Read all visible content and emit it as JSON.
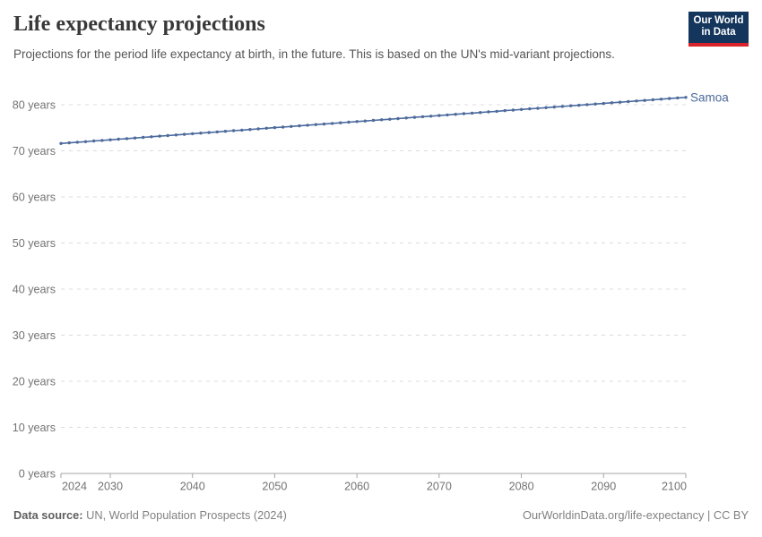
{
  "header": {
    "title": "Life expectancy projections",
    "subtitle": "Projections for the period life expectancy at birth, in the future. This is based on the UN's mid-variant projections."
  },
  "logo": {
    "line1": "Our World",
    "line2": "in Data",
    "bg_color": "#14355c",
    "accent_color": "#d8232a"
  },
  "chart_data": {
    "type": "line",
    "title": "Life expectancy projections",
    "xlabel": "",
    "ylabel": "",
    "xlim": [
      2024,
      2100
    ],
    "ylim": [
      0,
      85
    ],
    "grid": "horizontal-dashed",
    "legend_position": "end-of-line-label",
    "x_ticks": [
      2024,
      2030,
      2040,
      2050,
      2060,
      2070,
      2080,
      2090,
      2100
    ],
    "x_tick_labels": [
      "2024",
      "2030",
      "2040",
      "2050",
      "2060",
      "2070",
      "2080",
      "2090",
      "2100"
    ],
    "y_ticks": [
      0,
      10,
      20,
      30,
      40,
      50,
      60,
      70,
      80
    ],
    "y_tick_labels": [
      "0 years",
      "10 years",
      "20 years",
      "30 years",
      "40 years",
      "50 years",
      "60 years",
      "70 years",
      "80 years"
    ],
    "series": [
      {
        "name": "Samoa",
        "color": "#4c6a9c",
        "x": [
          2024,
          2025,
          2026,
          2027,
          2028,
          2029,
          2030,
          2031,
          2032,
          2033,
          2034,
          2035,
          2036,
          2037,
          2038,
          2039,
          2040,
          2041,
          2042,
          2043,
          2044,
          2045,
          2046,
          2047,
          2048,
          2049,
          2050,
          2051,
          2052,
          2053,
          2054,
          2055,
          2056,
          2057,
          2058,
          2059,
          2060,
          2061,
          2062,
          2063,
          2064,
          2065,
          2066,
          2067,
          2068,
          2069,
          2070,
          2071,
          2072,
          2073,
          2074,
          2075,
          2076,
          2077,
          2078,
          2079,
          2080,
          2081,
          2082,
          2083,
          2084,
          2085,
          2086,
          2087,
          2088,
          2089,
          2090,
          2091,
          2092,
          2093,
          2094,
          2095,
          2096,
          2097,
          2098,
          2099,
          2100
        ],
        "values": [
          71.6,
          71.73,
          71.86,
          71.99,
          72.13,
          72.26,
          72.39,
          72.52,
          72.65,
          72.78,
          72.92,
          73.05,
          73.18,
          73.31,
          73.44,
          73.57,
          73.71,
          73.84,
          73.97,
          74.1,
          74.23,
          74.36,
          74.49,
          74.63,
          74.76,
          74.89,
          75.02,
          75.15,
          75.28,
          75.42,
          75.55,
          75.68,
          75.81,
          75.94,
          76.07,
          76.21,
          76.34,
          76.47,
          76.6,
          76.73,
          76.86,
          76.99,
          77.13,
          77.26,
          77.39,
          77.52,
          77.65,
          77.78,
          77.92,
          78.05,
          78.18,
          78.31,
          78.44,
          78.57,
          78.71,
          78.84,
          78.97,
          79.1,
          79.23,
          79.36,
          79.49,
          79.63,
          79.76,
          79.89,
          80.02,
          80.15,
          80.28,
          80.42,
          80.55,
          80.68,
          80.81,
          80.94,
          81.07,
          81.21,
          81.34,
          81.47,
          81.6
        ]
      }
    ]
  },
  "colors": {
    "line": "#4c6a9c",
    "grid": "#dcdcdc",
    "axis": "#a5a5a5",
    "tick_text": "#737373",
    "series_label": "#4c6a9c"
  },
  "footer": {
    "datasource_label": "Data source:",
    "datasource_value": " UN, World Population Prospects (2024)",
    "credit": "OurWorldinData.org/life-expectancy | CC BY"
  }
}
